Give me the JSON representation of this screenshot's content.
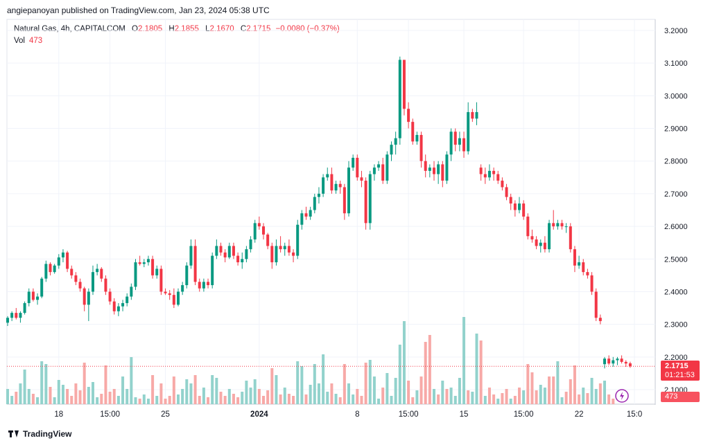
{
  "header": {
    "published": "angiepanoyan published on TradingView.com, Jan 23, 2024 05:38 UTC"
  },
  "legend": {
    "symbol": "Natural Gas, 4h, CAPITALCOM",
    "open_label": "O",
    "open": "2.1805",
    "high_label": "H",
    "high": "2.1855",
    "low_label": "L",
    "low": "2.1670",
    "close_label": "C",
    "close": "2.1715",
    "change": "−0.0080 (−0.37%)",
    "vol_label": "Vol",
    "vol": "473"
  },
  "price_tag": {
    "price": "2.1715",
    "countdown": "01:21:53",
    "volume": "473"
  },
  "footer": {
    "brand": "TradingView"
  },
  "colors": {
    "up": "#089981",
    "down": "#f23645",
    "vol_up": "#92d2cc",
    "vol_down": "#f7a9a7",
    "grid": "#f0f3fa"
  },
  "chart_data": {
    "type": "candlestick",
    "title": "Natural Gas, 4h, CAPITALCOM",
    "y_ticks": [
      "3.2000",
      "3.1000",
      "3.0000",
      "2.9000",
      "2.8000",
      "2.7000",
      "2.6000",
      "2.5000",
      "2.4000",
      "2.3000",
      "2.2000",
      "2.1000"
    ],
    "ylim": [
      2.07,
      3.23
    ],
    "x_ticks": [
      {
        "label": "18",
        "i": 12
      },
      {
        "label": "15:00",
        "i": 24
      },
      {
        "label": "25",
        "i": 37
      },
      {
        "label": "2024",
        "i": 59
      },
      {
        "label": "8",
        "i": 82
      },
      {
        "label": "15:00",
        "i": 94
      },
      {
        "label": "15",
        "i": 107
      },
      {
        "label": "15:00",
        "i": 121
      },
      {
        "label": "22",
        "i": 134
      },
      {
        "label": "15:0",
        "i": 147
      }
    ],
    "ohlc": [
      [
        2.305,
        2.325,
        2.295,
        2.32
      ],
      [
        2.32,
        2.34,
        2.31,
        2.335
      ],
      [
        2.335,
        2.35,
        2.315,
        2.32
      ],
      [
        2.32,
        2.34,
        2.305,
        2.335
      ],
      [
        2.335,
        2.37,
        2.33,
        2.365
      ],
      [
        2.365,
        2.41,
        2.355,
        2.4
      ],
      [
        2.4,
        2.41,
        2.37,
        2.375
      ],
      [
        2.375,
        2.395,
        2.36,
        2.385
      ],
      [
        2.385,
        2.445,
        2.38,
        2.44
      ],
      [
        2.44,
        2.495,
        2.43,
        2.485
      ],
      [
        2.485,
        2.49,
        2.45,
        2.46
      ],
      [
        2.46,
        2.485,
        2.455,
        2.48
      ],
      [
        2.48,
        2.515,
        2.47,
        2.505
      ],
      [
        2.505,
        2.53,
        2.49,
        2.52
      ],
      [
        2.52,
        2.525,
        2.46,
        2.47
      ],
      [
        2.47,
        2.48,
        2.44,
        2.45
      ],
      [
        2.45,
        2.46,
        2.42,
        2.43
      ],
      [
        2.43,
        2.44,
        2.4,
        2.41
      ],
      [
        2.41,
        2.415,
        2.34,
        2.36
      ],
      [
        2.36,
        2.41,
        2.31,
        2.4
      ],
      [
        2.4,
        2.48,
        2.39,
        2.46
      ],
      [
        2.46,
        2.485,
        2.45,
        2.47
      ],
      [
        2.47,
        2.475,
        2.43,
        2.44
      ],
      [
        2.44,
        2.45,
        2.39,
        2.4
      ],
      [
        2.4,
        2.41,
        2.36,
        2.37
      ],
      [
        2.37,
        2.38,
        2.33,
        2.34
      ],
      [
        2.34,
        2.365,
        2.325,
        2.355
      ],
      [
        2.355,
        2.375,
        2.34,
        2.365
      ],
      [
        2.365,
        2.395,
        2.355,
        2.385
      ],
      [
        2.385,
        2.425,
        2.375,
        2.415
      ],
      [
        2.415,
        2.5,
        2.405,
        2.49
      ],
      [
        2.49,
        2.51,
        2.48,
        2.485
      ],
      [
        2.485,
        2.5,
        2.475,
        2.49
      ],
      [
        2.49,
        2.51,
        2.48,
        2.5
      ],
      [
        2.5,
        2.51,
        2.44,
        2.45
      ],
      [
        2.45,
        2.48,
        2.44,
        2.47
      ],
      [
        2.47,
        2.48,
        2.39,
        2.4
      ],
      [
        2.4,
        2.41,
        2.39,
        2.395
      ],
      [
        2.395,
        2.405,
        2.375,
        2.39
      ],
      [
        2.39,
        2.41,
        2.35,
        2.36
      ],
      [
        2.36,
        2.41,
        2.355,
        2.4
      ],
      [
        2.4,
        2.43,
        2.39,
        2.42
      ],
      [
        2.42,
        2.49,
        2.41,
        2.48
      ],
      [
        2.48,
        2.56,
        2.47,
        2.54
      ],
      [
        2.54,
        2.56,
        2.42,
        2.43
      ],
      [
        2.43,
        2.44,
        2.4,
        2.41
      ],
      [
        2.41,
        2.44,
        2.4,
        2.43
      ],
      [
        2.43,
        2.44,
        2.41,
        2.42
      ],
      [
        2.42,
        2.52,
        2.41,
        2.51
      ],
      [
        2.51,
        2.56,
        2.5,
        2.54
      ],
      [
        2.54,
        2.55,
        2.51,
        2.52
      ],
      [
        2.52,
        2.53,
        2.49,
        2.505
      ],
      [
        2.505,
        2.55,
        2.5,
        2.54
      ],
      [
        2.54,
        2.55,
        2.5,
        2.51
      ],
      [
        2.51,
        2.52,
        2.48,
        2.49
      ],
      [
        2.49,
        2.52,
        2.47,
        2.5
      ],
      [
        2.5,
        2.54,
        2.49,
        2.53
      ],
      [
        2.53,
        2.57,
        2.52,
        2.56
      ],
      [
        2.56,
        2.62,
        2.55,
        2.61
      ],
      [
        2.61,
        2.63,
        2.59,
        2.6
      ],
      [
        2.6,
        2.61,
        2.56,
        2.575
      ],
      [
        2.575,
        2.58,
        2.53,
        2.54
      ],
      [
        2.54,
        2.55,
        2.47,
        2.49
      ],
      [
        2.49,
        2.56,
        2.48,
        2.54
      ],
      [
        2.54,
        2.57,
        2.52,
        2.53
      ],
      [
        2.53,
        2.55,
        2.51,
        2.54
      ],
      [
        2.54,
        2.56,
        2.51,
        2.52
      ],
      [
        2.52,
        2.53,
        2.49,
        2.51
      ],
      [
        2.51,
        2.62,
        2.5,
        2.605
      ],
      [
        2.605,
        2.65,
        2.59,
        2.64
      ],
      [
        2.64,
        2.66,
        2.62,
        2.63
      ],
      [
        2.63,
        2.66,
        2.62,
        2.65
      ],
      [
        2.65,
        2.7,
        2.64,
        2.69
      ],
      [
        2.69,
        2.72,
        2.67,
        2.7
      ],
      [
        2.7,
        2.76,
        2.69,
        2.75
      ],
      [
        2.75,
        2.78,
        2.74,
        2.76
      ],
      [
        2.76,
        2.78,
        2.7,
        2.71
      ],
      [
        2.71,
        2.74,
        2.7,
        2.73
      ],
      [
        2.73,
        2.74,
        2.7,
        2.72
      ],
      [
        2.72,
        2.73,
        2.62,
        2.64
      ],
      [
        2.64,
        2.8,
        2.63,
        2.78
      ],
      [
        2.78,
        2.82,
        2.77,
        2.81
      ],
      [
        2.81,
        2.82,
        2.74,
        2.75
      ],
      [
        2.75,
        2.77,
        2.72,
        2.74
      ],
      [
        2.74,
        2.75,
        2.59,
        2.61
      ],
      [
        2.61,
        2.77,
        2.59,
        2.76
      ],
      [
        2.76,
        2.79,
        2.74,
        2.78
      ],
      [
        2.78,
        2.8,
        2.77,
        2.79
      ],
      [
        2.79,
        2.81,
        2.73,
        2.74
      ],
      [
        2.74,
        2.83,
        2.73,
        2.82
      ],
      [
        2.82,
        2.86,
        2.8,
        2.85
      ],
      [
        2.85,
        2.89,
        2.82,
        2.87
      ],
      [
        2.87,
        3.12,
        2.85,
        3.11
      ],
      [
        3.11,
        3.11,
        2.94,
        2.96
      ],
      [
        2.96,
        2.98,
        2.9,
        2.92
      ],
      [
        2.92,
        2.93,
        2.85,
        2.86
      ],
      [
        2.86,
        2.89,
        2.85,
        2.88
      ],
      [
        2.88,
        2.89,
        2.78,
        2.8
      ],
      [
        2.8,
        2.82,
        2.75,
        2.77
      ],
      [
        2.77,
        2.79,
        2.75,
        2.78
      ],
      [
        2.78,
        2.8,
        2.74,
        2.76
      ],
      [
        2.76,
        2.8,
        2.73,
        2.79
      ],
      [
        2.79,
        2.8,
        2.72,
        2.74
      ],
      [
        2.74,
        2.83,
        2.73,
        2.82
      ],
      [
        2.82,
        2.9,
        2.8,
        2.89
      ],
      [
        2.89,
        2.9,
        2.83,
        2.85
      ],
      [
        2.85,
        2.89,
        2.83,
        2.87
      ],
      [
        2.87,
        2.89,
        2.81,
        2.83
      ],
      [
        2.83,
        2.98,
        2.82,
        2.95
      ],
      [
        2.95,
        2.96,
        2.92,
        2.93
      ],
      [
        2.93,
        2.98,
        2.91,
        2.95
      ],
      [
        2.78,
        2.79,
        2.74,
        2.76
      ],
      [
        2.76,
        2.78,
        2.73,
        2.75
      ],
      [
        2.75,
        2.79,
        2.74,
        2.77
      ],
      [
        2.77,
        2.78,
        2.74,
        2.76
      ],
      [
        2.76,
        2.77,
        2.73,
        2.74
      ],
      [
        2.74,
        2.75,
        2.71,
        2.72
      ],
      [
        2.72,
        2.73,
        2.68,
        2.69
      ],
      [
        2.69,
        2.7,
        2.65,
        2.67
      ],
      [
        2.67,
        2.68,
        2.63,
        2.65
      ],
      [
        2.65,
        2.69,
        2.64,
        2.67
      ],
      [
        2.67,
        2.68,
        2.62,
        2.63
      ],
      [
        2.63,
        2.64,
        2.56,
        2.57
      ],
      [
        2.57,
        2.59,
        2.55,
        2.56
      ],
      [
        2.56,
        2.57,
        2.53,
        2.54
      ],
      [
        2.54,
        2.56,
        2.52,
        2.55
      ],
      [
        2.55,
        2.57,
        2.52,
        2.53
      ],
      [
        2.53,
        2.62,
        2.52,
        2.61
      ],
      [
        2.61,
        2.65,
        2.59,
        2.6
      ],
      [
        2.6,
        2.62,
        2.59,
        2.61
      ],
      [
        2.61,
        2.62,
        2.59,
        2.6
      ],
      [
        2.6,
        2.61,
        2.58,
        2.6
      ],
      [
        2.6,
        2.61,
        2.52,
        2.53
      ],
      [
        2.53,
        2.54,
        2.46,
        2.48
      ],
      [
        2.48,
        2.51,
        2.47,
        2.49
      ],
      [
        2.49,
        2.5,
        2.45,
        2.46
      ],
      [
        2.46,
        2.47,
        2.44,
        2.45
      ],
      [
        2.45,
        2.46,
        2.39,
        2.4
      ],
      [
        2.4,
        2.41,
        2.31,
        2.32
      ],
      [
        2.32,
        2.33,
        2.3,
        2.31
      ],
      [
        2.178,
        2.2,
        2.165,
        2.195
      ],
      [
        2.195,
        2.205,
        2.175,
        2.18
      ],
      [
        2.18,
        2.2,
        2.17,
        2.19
      ],
      [
        2.19,
        2.2,
        2.175,
        2.195
      ],
      [
        2.195,
        2.205,
        2.18,
        2.185
      ],
      [
        2.185,
        2.19,
        2.17,
        2.18
      ],
      [
        2.1805,
        2.1855,
        2.167,
        2.1715
      ]
    ],
    "volume": [
      {
        "v": 22,
        "up": true
      },
      {
        "v": 12,
        "up": true
      },
      {
        "v": 18,
        "up": false
      },
      {
        "v": 30,
        "up": true
      },
      {
        "v": 50,
        "up": true
      },
      {
        "v": 22,
        "up": true
      },
      {
        "v": 15,
        "up": false
      },
      {
        "v": 10,
        "up": true
      },
      {
        "v": 62,
        "up": true
      },
      {
        "v": 58,
        "up": true
      },
      {
        "v": 25,
        "up": false
      },
      {
        "v": 10,
        "up": true
      },
      {
        "v": 35,
        "up": true
      },
      {
        "v": 28,
        "up": true
      },
      {
        "v": 22,
        "up": false
      },
      {
        "v": 12,
        "up": false
      },
      {
        "v": 30,
        "up": false
      },
      {
        "v": 20,
        "up": false
      },
      {
        "v": 60,
        "up": false
      },
      {
        "v": 25,
        "up": true
      },
      {
        "v": 32,
        "up": true
      },
      {
        "v": 10,
        "up": true
      },
      {
        "v": 15,
        "up": false
      },
      {
        "v": 56,
        "up": false
      },
      {
        "v": 18,
        "up": false
      },
      {
        "v": 22,
        "up": false
      },
      {
        "v": 12,
        "up": true
      },
      {
        "v": 40,
        "up": true
      },
      {
        "v": 22,
        "up": true
      },
      {
        "v": 68,
        "up": true
      },
      {
        "v": 10,
        "up": true
      },
      {
        "v": 8,
        "up": false
      },
      {
        "v": 14,
        "up": true
      },
      {
        "v": 8,
        "up": true
      },
      {
        "v": 42,
        "up": false
      },
      {
        "v": 12,
        "up": true
      },
      {
        "v": 30,
        "up": false
      },
      {
        "v": 8,
        "up": false
      },
      {
        "v": 12,
        "up": false
      },
      {
        "v": 40,
        "up": false
      },
      {
        "v": 14,
        "up": true
      },
      {
        "v": 22,
        "up": true
      },
      {
        "v": 36,
        "up": true
      },
      {
        "v": 30,
        "up": true
      },
      {
        "v": 42,
        "up": false
      },
      {
        "v": 12,
        "up": false
      },
      {
        "v": 24,
        "up": true
      },
      {
        "v": 10,
        "up": false
      },
      {
        "v": 42,
        "up": true
      },
      {
        "v": 38,
        "up": true
      },
      {
        "v": 18,
        "up": false
      },
      {
        "v": 12,
        "up": false
      },
      {
        "v": 22,
        "up": true
      },
      {
        "v": 15,
        "up": false
      },
      {
        "v": 10,
        "up": false
      },
      {
        "v": 18,
        "up": true
      },
      {
        "v": 34,
        "up": true
      },
      {
        "v": 24,
        "up": true
      },
      {
        "v": 36,
        "up": true
      },
      {
        "v": 22,
        "up": false
      },
      {
        "v": 12,
        "up": false
      },
      {
        "v": 20,
        "up": false
      },
      {
        "v": 52,
        "up": false
      },
      {
        "v": 42,
        "up": true
      },
      {
        "v": 14,
        "up": false
      },
      {
        "v": 24,
        "up": true
      },
      {
        "v": 15,
        "up": false
      },
      {
        "v": 12,
        "up": false
      },
      {
        "v": 62,
        "up": true
      },
      {
        "v": 55,
        "up": true
      },
      {
        "v": 14,
        "up": false
      },
      {
        "v": 28,
        "up": true
      },
      {
        "v": 58,
        "up": true
      },
      {
        "v": 30,
        "up": true
      },
      {
        "v": 72,
        "up": true
      },
      {
        "v": 18,
        "up": true
      },
      {
        "v": 30,
        "up": false
      },
      {
        "v": 15,
        "up": true
      },
      {
        "v": 10,
        "up": false
      },
      {
        "v": 58,
        "up": false
      },
      {
        "v": 30,
        "up": true
      },
      {
        "v": 14,
        "up": true
      },
      {
        "v": 22,
        "up": false
      },
      {
        "v": 12,
        "up": false
      },
      {
        "v": 60,
        "up": false
      },
      {
        "v": 64,
        "up": true
      },
      {
        "v": 40,
        "up": true
      },
      {
        "v": 8,
        "up": true
      },
      {
        "v": 24,
        "up": false
      },
      {
        "v": 45,
        "up": true
      },
      {
        "v": 12,
        "up": true
      },
      {
        "v": 38,
        "up": true
      },
      {
        "v": 86,
        "up": true
      },
      {
        "v": 120,
        "up": true
      },
      {
        "v": 34,
        "up": false
      },
      {
        "v": 10,
        "up": false
      },
      {
        "v": 20,
        "up": true
      },
      {
        "v": 40,
        "up": false
      },
      {
        "v": 90,
        "up": false
      },
      {
        "v": 100,
        "up": false
      },
      {
        "v": 22,
        "up": true
      },
      {
        "v": 14,
        "up": false
      },
      {
        "v": 34,
        "up": true
      },
      {
        "v": 22,
        "up": false
      },
      {
        "v": 24,
        "up": true
      },
      {
        "v": 12,
        "up": true
      },
      {
        "v": 38,
        "up": true
      },
      {
        "v": 126,
        "up": true
      },
      {
        "v": 20,
        "up": false
      },
      {
        "v": 18,
        "up": true
      },
      {
        "v": 102,
        "up": true
      },
      {
        "v": 92,
        "up": false
      },
      {
        "v": 12,
        "up": true
      },
      {
        "v": 24,
        "up": false
      },
      {
        "v": 14,
        "up": false
      },
      {
        "v": 8,
        "up": true
      },
      {
        "v": 16,
        "up": false
      },
      {
        "v": 22,
        "up": false
      },
      {
        "v": 8,
        "up": true
      },
      {
        "v": 12,
        "up": false
      },
      {
        "v": 24,
        "up": false
      },
      {
        "v": 20,
        "up": true
      },
      {
        "v": 58,
        "up": false
      },
      {
        "v": 46,
        "up": false
      },
      {
        "v": 20,
        "up": false
      },
      {
        "v": 28,
        "up": true
      },
      {
        "v": 24,
        "up": true
      },
      {
        "v": 40,
        "up": false
      },
      {
        "v": 40,
        "up": false
      },
      {
        "v": 62,
        "up": true
      },
      {
        "v": 10,
        "up": true
      },
      {
        "v": 18,
        "up": false
      },
      {
        "v": 36,
        "up": false
      },
      {
        "v": 56,
        "up": false
      },
      {
        "v": 14,
        "up": false
      },
      {
        "v": 24,
        "up": true
      },
      {
        "v": 16,
        "up": false
      },
      {
        "v": 38,
        "up": true
      },
      {
        "v": 22,
        "up": true
      },
      {
        "v": 30,
        "up": false
      },
      {
        "v": 34,
        "up": true
      },
      {
        "v": 14,
        "up": false
      },
      {
        "v": 8,
        "up": false
      }
    ]
  }
}
